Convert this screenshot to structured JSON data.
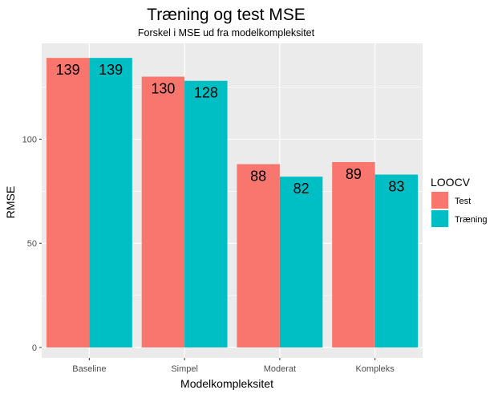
{
  "chart_data": {
    "type": "bar",
    "title": "Træning og test MSE",
    "subtitle": "Forskel i MSE ud fra modelkompleksitet",
    "xlabel": "Modelkompleksitet",
    "ylabel": "RMSE",
    "categories": [
      "Baseline",
      "Simpel",
      "Moderat",
      "Kompleks"
    ],
    "series": [
      {
        "name": "Test",
        "values": [
          139,
          130,
          88,
          89
        ],
        "color": "#F8766D",
        "labels": [
          "139",
          "130",
          "88",
          "89"
        ]
      },
      {
        "name": "Træning",
        "values": [
          139,
          128,
          82,
          83
        ],
        "color": "#00BFC4",
        "labels": [
          "139",
          "128",
          "82",
          "83"
        ]
      }
    ],
    "ylim": [
      -5,
      146
    ],
    "yticks": [
      0,
      50,
      100
    ],
    "ytick_labels": [
      "0",
      "50",
      "100"
    ],
    "grid": true,
    "panel_background": "#EBEBEB",
    "legend": {
      "title": "LOOCV",
      "position": "right"
    }
  }
}
